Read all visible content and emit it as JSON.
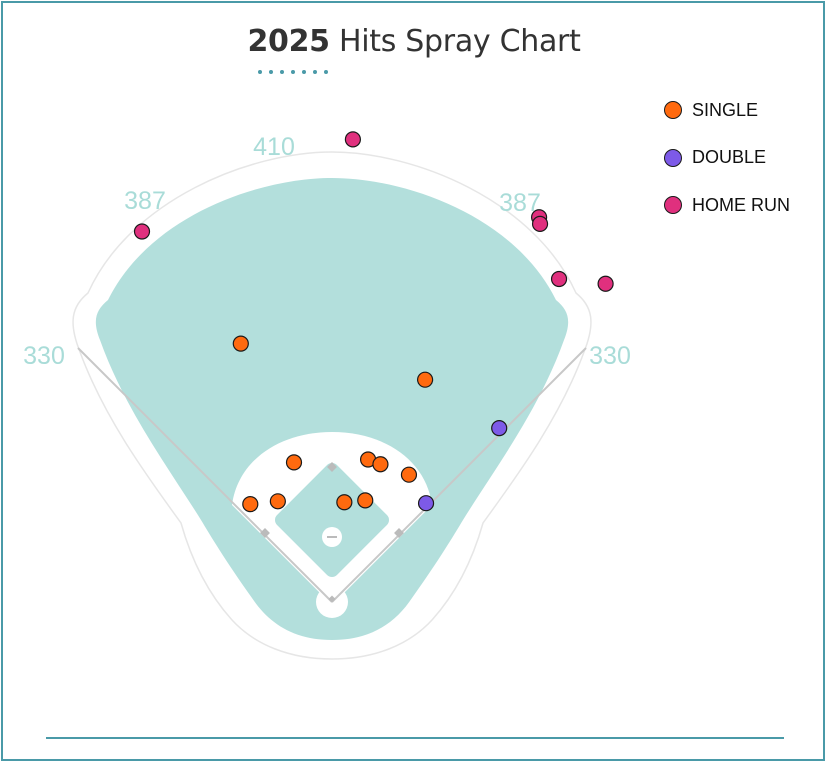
{
  "title": {
    "bold": "2025",
    "rest": " Hits Spray Chart"
  },
  "colors": {
    "frame": "#4a9aa8",
    "outfield_grass": "#b3dfdc",
    "distance_labels": "#a9dcd8",
    "single": "#ff6a0f",
    "double": "#7d5ae8",
    "home_run": "#e0307e"
  },
  "legend": [
    {
      "key": "single",
      "label": "SINGLE"
    },
    {
      "key": "double",
      "label": "DOUBLE"
    },
    {
      "key": "home_run",
      "label": "HOME RUN"
    }
  ],
  "chart_data": {
    "type": "scatter",
    "title": "2025 Hits Spray Chart",
    "legend_position": "top-right",
    "fence_distances": {
      "left_line": "330",
      "left_center": "387",
      "center": "410",
      "right_center": "387",
      "right_line": "330"
    },
    "series": [
      {
        "name": "SINGLE",
        "points": [
          [
            -96,
            272
          ],
          [
            98,
            234
          ],
          [
            -40,
            147
          ],
          [
            38,
            150
          ],
          [
            51,
            145
          ],
          [
            81,
            134
          ],
          [
            -57,
            106
          ],
          [
            -86,
            103
          ],
          [
            13,
            105
          ],
          [
            35,
            107
          ]
        ]
      },
      {
        "name": "DOUBLE",
        "points": [
          [
            176,
            183
          ],
          [
            99,
            104
          ]
        ]
      },
      {
        "name": "HOME RUN",
        "points": [
          [
            22,
            487
          ],
          [
            -200,
            390
          ],
          [
            218,
            405
          ],
          [
            219,
            398
          ],
          [
            239,
            340
          ],
          [
            288,
            335
          ]
        ]
      }
    ]
  }
}
